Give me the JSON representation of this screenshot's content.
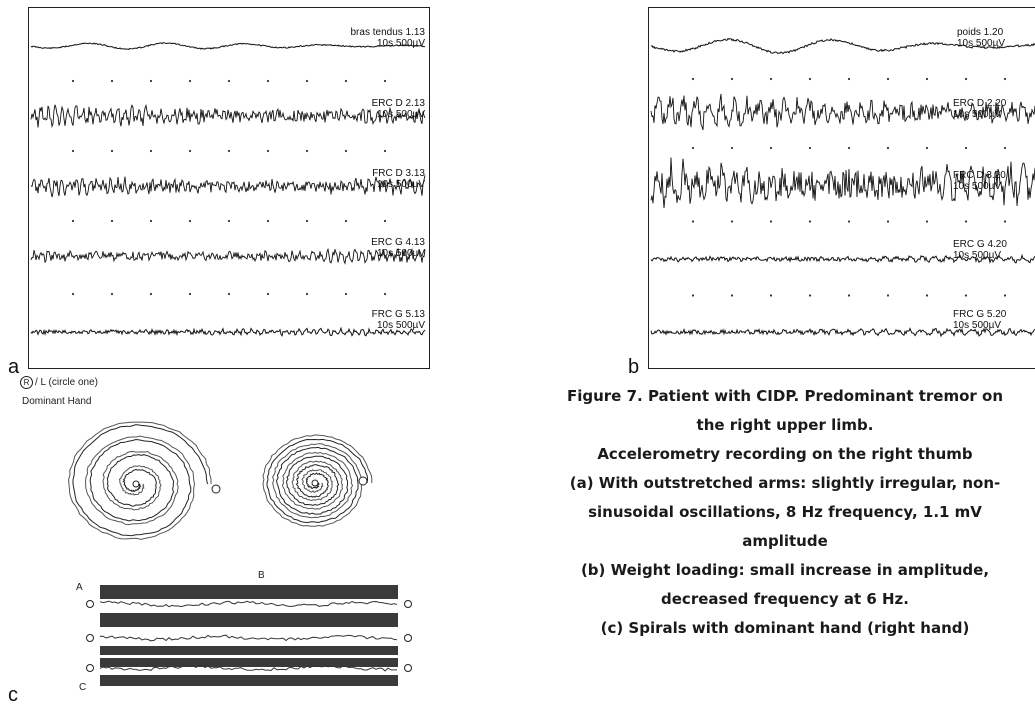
{
  "panel_a": {
    "letter": "a",
    "traces": [
      {
        "name": "bras tendus 1.13",
        "scale": "10s 500µV",
        "amplitude": 3,
        "frequency": 0.08,
        "noise": 0.6
      },
      {
        "name": "ERC D 2.13",
        "scale": "10s 500µV",
        "amplitude": 6,
        "frequency": 0.9,
        "noise": 6
      },
      {
        "name": "FRC D 3.13",
        "scale": "10s 500µV",
        "amplitude": 6,
        "frequency": 0.9,
        "noise": 6
      },
      {
        "name": "ERC G 4.13",
        "scale": "10s 500µV",
        "amplitude": 4,
        "frequency": 0.9,
        "noise": 4
      },
      {
        "name": "FRC G 5.13",
        "scale": "10s 500µV",
        "amplitude": 2,
        "frequency": 0.9,
        "noise": 2
      }
    ]
  },
  "panel_b": {
    "letter": "b",
    "traces": [
      {
        "name": "poids 1.20",
        "scale": "10s 500µV",
        "amplitude": 7,
        "frequency": 0.06,
        "noise": 1
      },
      {
        "name": "ERC D 2.20",
        "scale": "10s 500µV",
        "amplitude": 10,
        "frequency": 0.5,
        "noise": 9
      },
      {
        "name": "FRC D 3.20",
        "scale": "10s 500µV",
        "amplitude": 14,
        "frequency": 0.5,
        "noise": 14
      },
      {
        "name": "ERC G 4.20",
        "scale": "10s 500µV",
        "amplitude": 2,
        "frequency": 0.5,
        "noise": 2
      },
      {
        "name": "FRC G 5.20",
        "scale": "10s 500µV",
        "amplitude": 2,
        "frequency": 0.5,
        "noise": 2
      }
    ]
  },
  "panel_c": {
    "letter": "c",
    "hand_selector": "R / L (circle one)",
    "hand_selected": "R",
    "hand_rest": "/ L (circle one)",
    "dominant_hand": "Dominant Hand",
    "spiral_a_label": "A",
    "spiral_b_label": "B",
    "lines_label": "C"
  },
  "caption": [
    "Figure 7. Patient with CIDP. Predominant tremor on",
    "the right upper limb.",
    "Accelerometry recording on the right thumb",
    "(a) With outstretched arms: slightly irregular, non-",
    "sinusoidal oscillations, 8 Hz frequency, 1.1 mV",
    "amplitude",
    "(b) Weight loading: small increase in amplitude,",
    "decreased frequency at 6 Hz.",
    "(c) Spirals with dominant hand (right hand)"
  ]
}
